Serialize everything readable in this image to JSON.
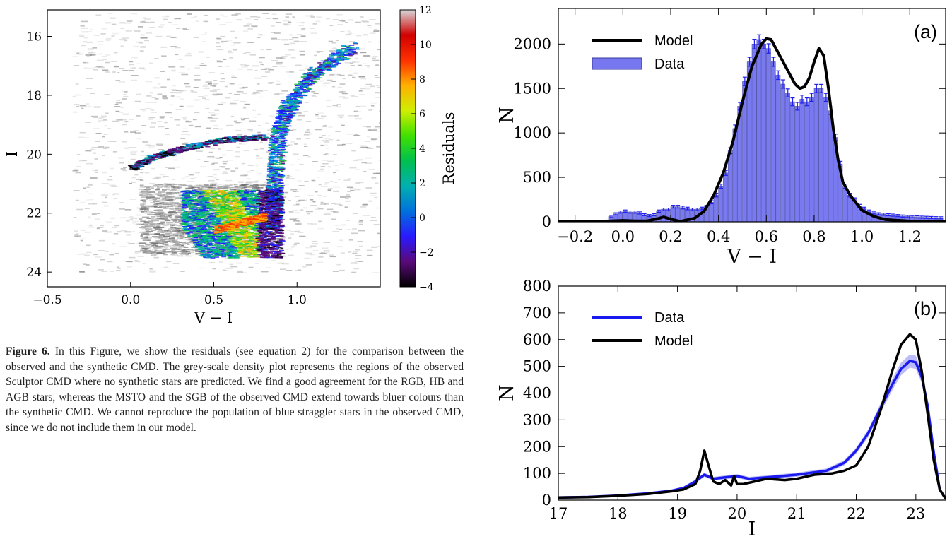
{
  "caption": {
    "label": "Figure 6.",
    "text": "In this Figure, we show the residuals (see equation 2) for the comparison between the observed and the synthetic CMD. The grey-scale density plot represents the regions of the observed Sculptor CMD where no synthetic stars are predicted. We find a good agreement for the RGB, HB and AGB stars, whereas the MSTO and the SGB of the observed CMD extend towards bluer colours than the synthetic CMD. We cannot reproduce the population of blue straggler stars in the observed CMD, since we do not include them in our model."
  },
  "chart_data": [
    {
      "type": "heatmap",
      "xlabel": "V − I",
      "ylabel": "I",
      "xlim": [
        -0.5,
        1.5
      ],
      "ylim": [
        24.5,
        15.1
      ],
      "xticks": [
        "−0.5",
        "0.0",
        "0.5",
        "1.0"
      ],
      "xtick_values": [
        -0.5,
        0.0,
        0.5,
        1.0
      ],
      "yticks": [
        "16",
        "18",
        "20",
        "22",
        "24"
      ],
      "ytick_values": [
        16,
        18,
        20,
        22,
        24
      ],
      "colorbar": {
        "label": "Residuals",
        "range": [
          -4,
          12
        ],
        "ticks": [
          "−4",
          "−2",
          "0",
          "2",
          "4",
          "6",
          "8",
          "10",
          "12"
        ],
        "tick_values": [
          -4,
          -2,
          0,
          2,
          4,
          6,
          8,
          10,
          12
        ],
        "colormap": [
          "#000000",
          "#5a0a7a",
          "#2a1aff",
          "#0070dd",
          "#00b0b0",
          "#00c050",
          "#40e000",
          "#d0ee00",
          "#ffb000",
          "#ff3000",
          "#d00000",
          "#d8d8d8"
        ]
      },
      "features": [
        {
          "name": "RGB",
          "points": [
            [
              1.33,
              16.3
            ],
            [
              1.1,
              17.2
            ],
            [
              0.95,
              18.2
            ],
            [
              0.88,
              19.2
            ],
            [
              0.86,
              20.5
            ],
            [
              0.85,
              21.5
            ],
            [
              0.84,
              22.5
            ]
          ]
        },
        {
          "name": "HB",
          "points": [
            [
              0.0,
              20.45
            ],
            [
              0.12,
              20.1
            ],
            [
              0.3,
              19.8
            ],
            [
              0.55,
              19.5
            ],
            [
              0.8,
              19.4
            ]
          ]
        },
        {
          "name": "MSTO",
          "points": [
            [
              0.35,
              23.2
            ],
            [
              0.55,
              22.6
            ],
            [
              0.7,
              22.2
            ],
            [
              0.82,
              22.0
            ]
          ]
        }
      ]
    },
    {
      "type": "bar",
      "panel": "(a)",
      "xlabel": "V − I",
      "ylabel": "N",
      "xlim": [
        -0.27,
        1.35
      ],
      "ylim": [
        0,
        2400
      ],
      "xticks": [
        "−0.2",
        "0.0",
        "0.2",
        "0.4",
        "0.6",
        "0.8",
        "1.0",
        "1.2"
      ],
      "xtick_values": [
        -0.2,
        0.0,
        0.2,
        0.4,
        0.6,
        0.8,
        1.0,
        1.2
      ],
      "yticks": [
        "0",
        "500",
        "1000",
        "1500",
        "2000"
      ],
      "ytick_values": [
        0,
        500,
        1000,
        1500,
        2000
      ],
      "legend": {
        "position": "top-left",
        "entries": [
          "Model",
          "Data"
        ]
      },
      "series": [
        {
          "name": "Data",
          "color": "#6f6ff0",
          "x": [
            -0.05,
            -0.03,
            -0.01,
            0.01,
            0.03,
            0.05,
            0.07,
            0.09,
            0.11,
            0.13,
            0.15,
            0.17,
            0.19,
            0.21,
            0.23,
            0.25,
            0.27,
            0.29,
            0.31,
            0.33,
            0.35,
            0.37,
            0.39,
            0.41,
            0.43,
            0.45,
            0.47,
            0.49,
            0.51,
            0.53,
            0.55,
            0.57,
            0.59,
            0.61,
            0.63,
            0.65,
            0.67,
            0.69,
            0.71,
            0.73,
            0.75,
            0.77,
            0.79,
            0.81,
            0.83,
            0.85,
            0.87,
            0.89,
            0.91,
            0.93,
            0.95,
            0.97,
            0.99,
            1.01,
            1.03,
            1.05,
            1.07,
            1.09,
            1.11,
            1.13,
            1.15,
            1.17,
            1.19,
            1.21,
            1.23,
            1.25,
            1.27,
            1.29,
            1.31,
            1.33
          ],
          "values": [
            60,
            90,
            110,
            120,
            110,
            110,
            100,
            80,
            70,
            80,
            120,
            140,
            140,
            170,
            170,
            160,
            150,
            140,
            140,
            150,
            170,
            220,
            300,
            400,
            550,
            800,
            1050,
            1300,
            1580,
            1800,
            2000,
            2050,
            2000,
            1950,
            1800,
            1650,
            1550,
            1450,
            1350,
            1300,
            1380,
            1350,
            1400,
            1500,
            1500,
            1400,
            1250,
            950,
            650,
            400,
            300,
            250,
            180,
            150,
            120,
            100,
            90,
            85,
            80,
            75,
            70,
            65,
            60,
            58,
            55,
            52,
            50,
            48,
            46,
            45
          ]
        },
        {
          "name": "Model",
          "color": "#000000",
          "x": [
            -0.27,
            -0.1,
            0.0,
            0.05,
            0.1,
            0.14,
            0.17,
            0.2,
            0.24,
            0.3,
            0.34,
            0.38,
            0.42,
            0.46,
            0.5,
            0.54,
            0.58,
            0.6,
            0.62,
            0.64,
            0.66,
            0.68,
            0.7,
            0.72,
            0.74,
            0.76,
            0.78,
            0.8,
            0.82,
            0.84,
            0.86,
            0.88,
            0.9,
            0.92,
            0.95,
            1.0,
            1.05,
            1.1,
            1.2,
            1.35
          ],
          "values": [
            0,
            5,
            15,
            10,
            10,
            30,
            55,
            30,
            5,
            40,
            120,
            300,
            550,
            900,
            1350,
            1750,
            2000,
            2060,
            2050,
            1950,
            1850,
            1750,
            1650,
            1550,
            1500,
            1520,
            1620,
            1800,
            1950,
            1870,
            1500,
            1050,
            700,
            450,
            300,
            130,
            60,
            25,
            8,
            3
          ]
        }
      ]
    },
    {
      "type": "line",
      "panel": "(b)",
      "xlabel": "I",
      "ylabel": "N",
      "xlim": [
        17,
        23.5
      ],
      "ylim": [
        0,
        800
      ],
      "xticks": [
        "17",
        "18",
        "19",
        "20",
        "21",
        "22",
        "23"
      ],
      "xtick_values": [
        17,
        18,
        19,
        20,
        21,
        22,
        23
      ],
      "yticks": [
        "0",
        "100",
        "200",
        "300",
        "400",
        "500",
        "600",
        "700",
        "800"
      ],
      "ytick_values": [
        0,
        100,
        200,
        300,
        400,
        500,
        600,
        700,
        800
      ],
      "legend": {
        "position": "top-left",
        "entries": [
          "Data",
          "Model"
        ]
      },
      "series": [
        {
          "name": "Data",
          "color": "#1a1aee",
          "x": [
            17,
            17.5,
            18,
            18.5,
            18.9,
            19.1,
            19.3,
            19.45,
            19.6,
            19.8,
            20,
            20.2,
            20.5,
            21,
            21.5,
            21.8,
            22,
            22.2,
            22.4,
            22.6,
            22.75,
            22.9,
            23.0,
            23.1,
            23.2,
            23.3,
            23.4,
            23.5
          ],
          "values": [
            10,
            12,
            17,
            25,
            35,
            45,
            70,
            95,
            80,
            85,
            90,
            80,
            85,
            95,
            110,
            140,
            185,
            250,
            340,
            430,
            490,
            520,
            515,
            460,
            350,
            180,
            40,
            5
          ]
        },
        {
          "name": "Model",
          "color": "#000000",
          "x": [
            17,
            17.5,
            18,
            18.5,
            18.9,
            19.1,
            19.3,
            19.38,
            19.45,
            19.52,
            19.6,
            19.7,
            19.8,
            19.9,
            19.95,
            20.0,
            20.1,
            20.3,
            20.5,
            20.8,
            21,
            21.3,
            21.6,
            21.8,
            22.0,
            22.2,
            22.4,
            22.6,
            22.75,
            22.9,
            23.0,
            23.1,
            23.2,
            23.3,
            23.4,
            23.5
          ],
          "values": [
            10,
            11,
            16,
            23,
            33,
            40,
            60,
            110,
            185,
            130,
            70,
            60,
            75,
            55,
            90,
            60,
            60,
            70,
            80,
            75,
            80,
            95,
            100,
            110,
            130,
            200,
            330,
            480,
            580,
            620,
            600,
            480,
            320,
            150,
            40,
            5
          ]
        }
      ]
    }
  ]
}
